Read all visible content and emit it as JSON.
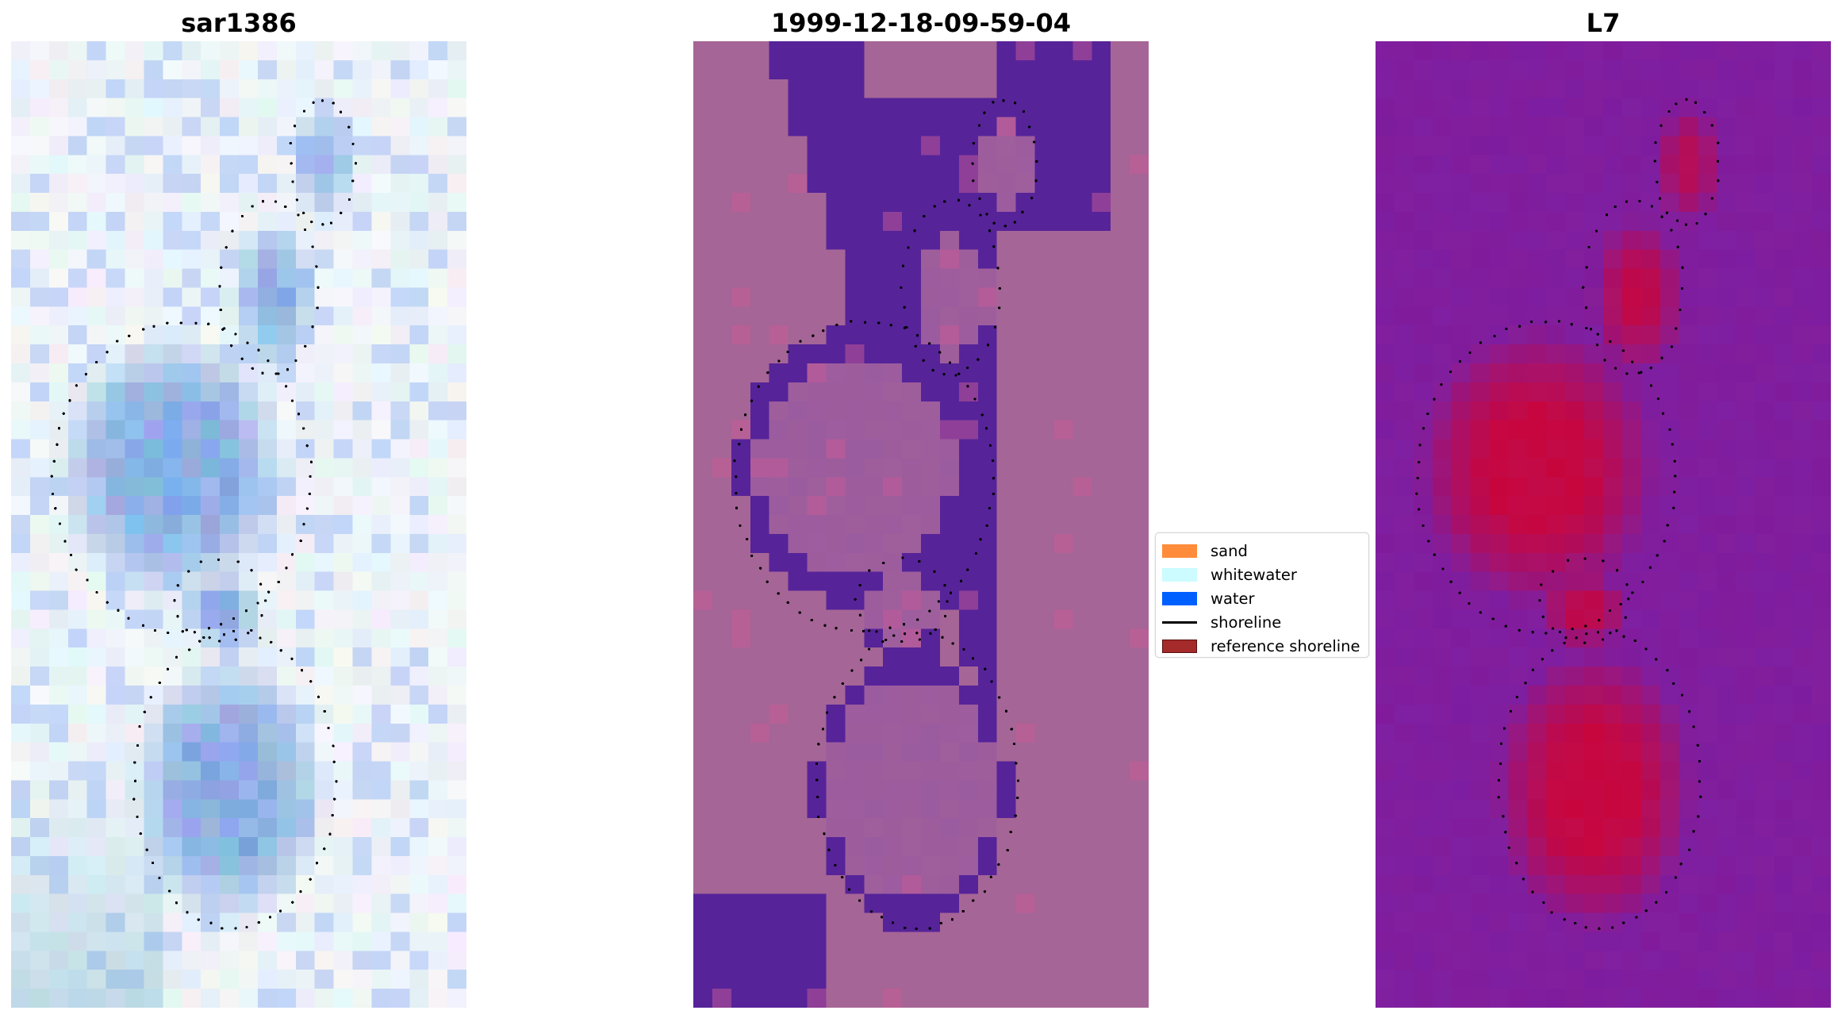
{
  "panels": [
    {
      "title": "sar1386"
    },
    {
      "title": "1999-12-18-09-59-04"
    },
    {
      "title": "L7"
    }
  ],
  "legend": {
    "items": [
      {
        "label": "sand",
        "color": "#ff8c3a",
        "kind": "patch"
      },
      {
        "label": "whitewater",
        "color": "#ccfcff",
        "kind": "patch"
      },
      {
        "label": "water",
        "color": "#0060ff",
        "kind": "patch"
      },
      {
        "label": "shoreline",
        "color": "#000000",
        "kind": "line"
      },
      {
        "label": "reference shoreline",
        "color": "#a52a2a",
        "kind": "patch"
      }
    ]
  },
  "colors": {
    "classification_water": "#562399",
    "classification_land": "#a56596",
    "classification_mix": "#9b5b9f",
    "index_low": "#7a1aa0",
    "index_high": "#cc0033",
    "shoreline": "#000000"
  }
}
